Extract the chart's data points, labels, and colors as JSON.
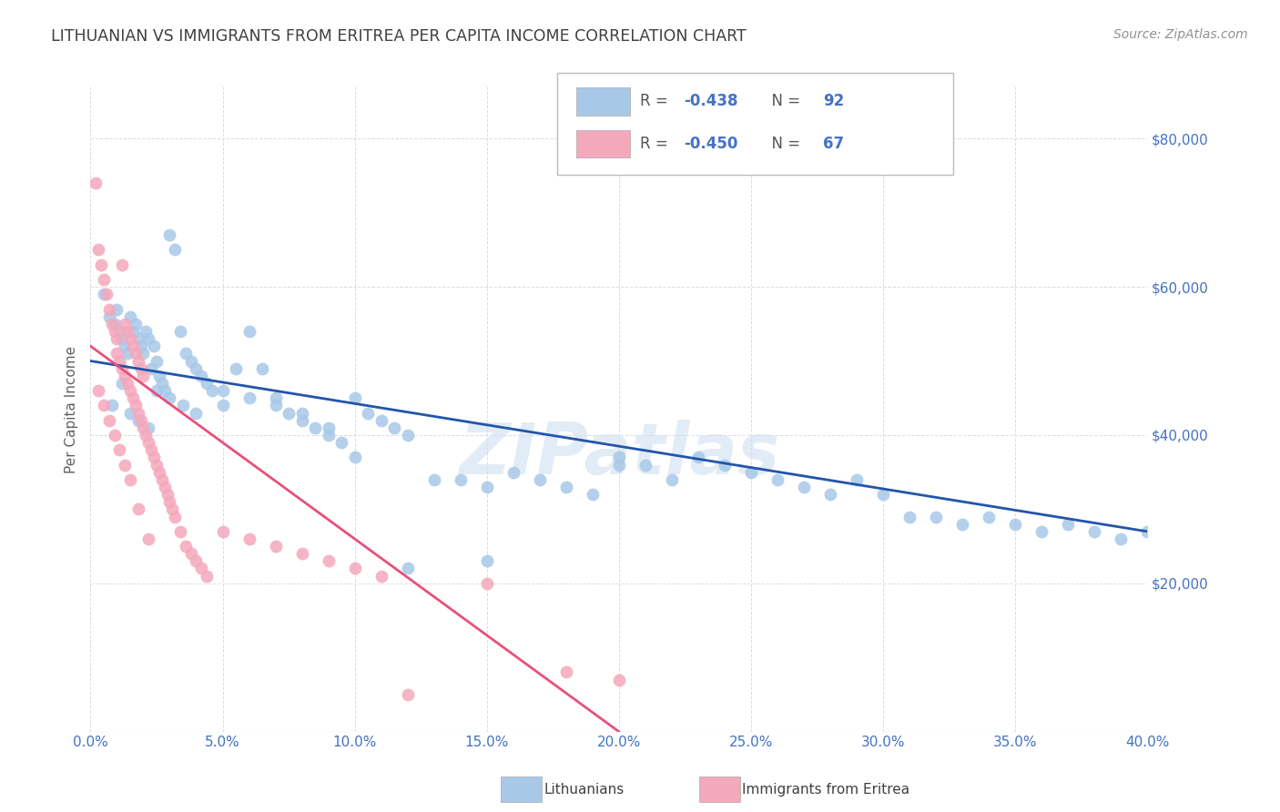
{
  "title": "LITHUANIAN VS IMMIGRANTS FROM ERITREA PER CAPITA INCOME CORRELATION CHART",
  "source": "Source: ZipAtlas.com",
  "ylabel": "Per Capita Income",
  "xlabel_ticks": [
    "0.0%",
    "5.0%",
    "10.0%",
    "15.0%",
    "20.0%",
    "25.0%",
    "30.0%",
    "35.0%",
    "40.0%"
  ],
  "xlabel_vals": [
    0.0,
    0.05,
    0.1,
    0.15,
    0.2,
    0.25,
    0.3,
    0.35,
    0.4
  ],
  "ytick_vals": [
    0,
    20000,
    40000,
    60000,
    80000
  ],
  "ytick_labels": [
    "",
    "$20,000",
    "$40,000",
    "$60,000",
    "$80,000"
  ],
  "xlim": [
    0.0,
    0.4
  ],
  "ylim": [
    0,
    87000
  ],
  "legend_label1": "Lithuanians",
  "legend_label2": "Immigrants from Eritrea",
  "R1": -0.438,
  "N1": 92,
  "R2": -0.45,
  "N2": 67,
  "blue_color": "#a8c8e8",
  "pink_color": "#f4a8bc",
  "blue_line_color": "#2255aa",
  "pink_line_color": "#e8507a",
  "watermark_text": "ZIPatlas",
  "watermark_color": "#d0e0f0",
  "watermark_alpha": 0.6,
  "background_color": "#ffffff",
  "grid_color": "#dddddd",
  "title_color": "#404040",
  "axis_color": "#4472c4",
  "blue_scatter_x": [
    0.005,
    0.007,
    0.009,
    0.01,
    0.011,
    0.012,
    0.013,
    0.014,
    0.015,
    0.016,
    0.017,
    0.018,
    0.019,
    0.02,
    0.021,
    0.022,
    0.023,
    0.024,
    0.025,
    0.026,
    0.027,
    0.028,
    0.03,
    0.032,
    0.034,
    0.036,
    0.038,
    0.04,
    0.042,
    0.044,
    0.046,
    0.05,
    0.055,
    0.06,
    0.065,
    0.07,
    0.075,
    0.08,
    0.085,
    0.09,
    0.095,
    0.1,
    0.105,
    0.11,
    0.115,
    0.12,
    0.13,
    0.14,
    0.15,
    0.16,
    0.17,
    0.18,
    0.19,
    0.2,
    0.21,
    0.22,
    0.23,
    0.24,
    0.25,
    0.26,
    0.27,
    0.28,
    0.29,
    0.3,
    0.31,
    0.32,
    0.33,
    0.34,
    0.35,
    0.36,
    0.37,
    0.38,
    0.39,
    0.4,
    0.008,
    0.012,
    0.015,
    0.018,
    0.022,
    0.025,
    0.03,
    0.035,
    0.04,
    0.05,
    0.06,
    0.07,
    0.08,
    0.09,
    0.1,
    0.12,
    0.15,
    0.2
  ],
  "blue_scatter_y": [
    59000,
    56000,
    55000,
    57000,
    54000,
    53000,
    52000,
    51000,
    56000,
    54000,
    55000,
    53000,
    52000,
    51000,
    54000,
    53000,
    49000,
    52000,
    50000,
    48000,
    47000,
    46000,
    67000,
    65000,
    54000,
    51000,
    50000,
    49000,
    48000,
    47000,
    46000,
    44000,
    49000,
    54000,
    49000,
    45000,
    43000,
    42000,
    41000,
    40000,
    39000,
    45000,
    43000,
    42000,
    41000,
    40000,
    34000,
    34000,
    33000,
    35000,
    34000,
    33000,
    32000,
    37000,
    36000,
    34000,
    37000,
    36000,
    35000,
    34000,
    33000,
    32000,
    34000,
    32000,
    29000,
    29000,
    28000,
    29000,
    28000,
    27000,
    28000,
    27000,
    26000,
    27000,
    44000,
    47000,
    43000,
    42000,
    41000,
    46000,
    45000,
    44000,
    43000,
    46000,
    45000,
    44000,
    43000,
    41000,
    37000,
    22000,
    23000,
    36000
  ],
  "pink_scatter_x": [
    0.002,
    0.003,
    0.004,
    0.005,
    0.006,
    0.007,
    0.008,
    0.009,
    0.01,
    0.01,
    0.011,
    0.012,
    0.012,
    0.013,
    0.013,
    0.014,
    0.014,
    0.015,
    0.015,
    0.016,
    0.016,
    0.017,
    0.017,
    0.018,
    0.018,
    0.019,
    0.019,
    0.02,
    0.02,
    0.021,
    0.022,
    0.023,
    0.024,
    0.025,
    0.026,
    0.027,
    0.028,
    0.029,
    0.03,
    0.031,
    0.032,
    0.034,
    0.036,
    0.038,
    0.04,
    0.042,
    0.044,
    0.05,
    0.06,
    0.07,
    0.08,
    0.09,
    0.1,
    0.11,
    0.12,
    0.15,
    0.18,
    0.2,
    0.003,
    0.005,
    0.007,
    0.009,
    0.011,
    0.013,
    0.015,
    0.018,
    0.022
  ],
  "pink_scatter_y": [
    74000,
    65000,
    63000,
    61000,
    59000,
    57000,
    55000,
    54000,
    53000,
    51000,
    50000,
    49000,
    63000,
    48000,
    55000,
    47000,
    54000,
    46000,
    53000,
    45000,
    52000,
    44000,
    51000,
    43000,
    50000,
    42000,
    49000,
    41000,
    48000,
    40000,
    39000,
    38000,
    37000,
    36000,
    35000,
    34000,
    33000,
    32000,
    31000,
    30000,
    29000,
    27000,
    25000,
    24000,
    23000,
    22000,
    21000,
    27000,
    26000,
    25000,
    24000,
    23000,
    22000,
    21000,
    5000,
    20000,
    8000,
    7000,
    46000,
    44000,
    42000,
    40000,
    38000,
    36000,
    34000,
    30000,
    26000
  ],
  "blue_trendline_x": [
    0.0,
    0.4
  ],
  "blue_trendline_y": [
    50000,
    27000
  ],
  "pink_trendline_x": [
    0.0,
    0.2
  ],
  "pink_trendline_y": [
    52000,
    0
  ]
}
